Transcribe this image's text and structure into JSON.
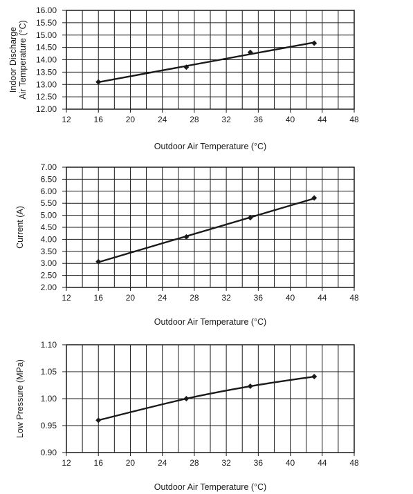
{
  "chart_data": [
    {
      "type": "line",
      "title": "",
      "xlabel": "Outdoor Air Temperature (°C)",
      "ylabel": [
        "Indoor Discharge",
        "Air Temperature (°C)"
      ],
      "xlim": [
        12,
        48
      ],
      "ylim": [
        12.0,
        16.0
      ],
      "xticks": [
        "12",
        "16",
        "20",
        "24",
        "28",
        "32",
        "36",
        "40",
        "44",
        "48"
      ],
      "yticks": [
        "12.00",
        "12.50",
        "13.00",
        "13.50",
        "14.00",
        "14.50",
        "15.00",
        "15.50",
        "16.00"
      ],
      "grid": true,
      "series": [
        {
          "x": [
            16,
            27,
            35,
            43
          ],
          "y": [
            13.1,
            13.7,
            14.3,
            14.67
          ],
          "fit": "linear",
          "marker": "diamond"
        }
      ]
    },
    {
      "type": "line",
      "title": "",
      "xlabel": "Outdoor Air Temperature (°C)",
      "ylabel": [
        "Current (A)"
      ],
      "xlim": [
        12,
        48
      ],
      "ylim": [
        2.0,
        7.0
      ],
      "xticks": [
        "12",
        "16",
        "20",
        "24",
        "28",
        "32",
        "36",
        "40",
        "44",
        "48"
      ],
      "yticks": [
        "2.00",
        "2.50",
        "3.00",
        "3.50",
        "4.00",
        "4.50",
        "5.00",
        "5.50",
        "6.00",
        "6.50",
        "7.00"
      ],
      "grid": true,
      "series": [
        {
          "x": [
            16,
            27,
            35,
            43
          ],
          "y": [
            3.07,
            4.1,
            4.9,
            5.72
          ],
          "fit": "linear",
          "marker": "diamond"
        }
      ]
    },
    {
      "type": "line",
      "title": "",
      "xlabel": "Outdoor Air Temperature (°C)",
      "ylabel": [
        "Low Pressure (MPa)"
      ],
      "xlim": [
        12,
        48
      ],
      "ylim": [
        0.9,
        1.1
      ],
      "xticks": [
        "12",
        "16",
        "20",
        "24",
        "28",
        "32",
        "36",
        "40",
        "44",
        "48"
      ],
      "yticks": [
        "0.90",
        "0.95",
        "1.00",
        "1.05",
        "1.10"
      ],
      "grid": true,
      "series": [
        {
          "x": [
            16,
            27,
            35,
            43
          ],
          "y": [
            0.96,
            1.0,
            1.023,
            1.041
          ],
          "fit": "smooth",
          "marker": "diamond"
        }
      ]
    }
  ]
}
